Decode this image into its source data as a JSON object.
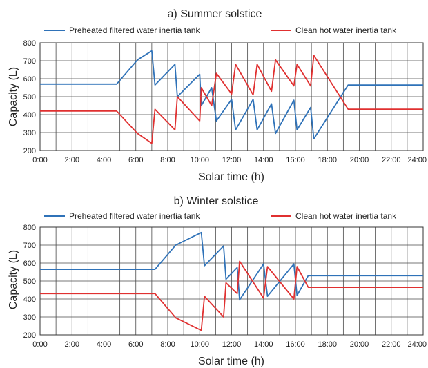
{
  "chart_data": [
    {
      "type": "line",
      "title": "a) Summer solstice",
      "xlabel": "Solar time (h)",
      "ylabel": "Capacity (L)",
      "xlim": [
        0,
        24
      ],
      "ylim": [
        200,
        800
      ],
      "x_ticks": [
        "0:00",
        "2:00",
        "4:00",
        "6:00",
        "8:00",
        "10:00",
        "12:00",
        "14:00",
        "16:00",
        "18:00",
        "20:00",
        "22:00",
        "24:00"
      ],
      "y_ticks": [
        "200",
        "300",
        "400",
        "500",
        "600",
        "700",
        "800"
      ],
      "grid": true,
      "legend": "top",
      "series": [
        {
          "name": "Preheated filtered water inertia tank",
          "color": "#2f72b8",
          "points": [
            [
              0,
              570
            ],
            [
              4.8,
              570
            ],
            [
              6.1,
              705
            ],
            [
              7,
              755
            ],
            [
              7.2,
              565
            ],
            [
              8.45,
              680
            ],
            [
              8.6,
              500
            ],
            [
              10,
              625
            ],
            [
              10.1,
              450
            ],
            [
              10.75,
              550
            ],
            [
              11.05,
              365
            ],
            [
              12,
              485
            ],
            [
              12.25,
              315
            ],
            [
              13.35,
              485
            ],
            [
              13.6,
              315
            ],
            [
              14.5,
              460
            ],
            [
              14.75,
              295
            ],
            [
              15.9,
              480
            ],
            [
              16.1,
              315
            ],
            [
              16.95,
              440
            ],
            [
              17.15,
              265
            ],
            [
              19.3,
              565
            ],
            [
              24,
              565
            ]
          ]
        },
        {
          "name": "Clean hot water inertia tank",
          "color": "#e03030",
          "points": [
            [
              0,
              420
            ],
            [
              4.8,
              420
            ],
            [
              6.1,
              295
            ],
            [
              7,
              240
            ],
            [
              7.2,
              430
            ],
            [
              8.45,
              315
            ],
            [
              8.6,
              500
            ],
            [
              10,
              365
            ],
            [
              10.1,
              550
            ],
            [
              10.75,
              450
            ],
            [
              11.05,
              630
            ],
            [
              12,
              515
            ],
            [
              12.25,
              680
            ],
            [
              13.35,
              510
            ],
            [
              13.6,
              680
            ],
            [
              14.5,
              530
            ],
            [
              14.75,
              705
            ],
            [
              15.9,
              560
            ],
            [
              16.1,
              680
            ],
            [
              16.95,
              560
            ],
            [
              17.15,
              730
            ],
            [
              19.3,
              430
            ],
            [
              24,
              430
            ]
          ]
        }
      ]
    },
    {
      "type": "line",
      "title": "b) Winter solstice",
      "xlabel": "Solar time (h)",
      "ylabel": "Capacity (L)",
      "xlim": [
        0,
        24
      ],
      "ylim": [
        200,
        800
      ],
      "x_ticks": [
        "0:00",
        "2:00",
        "4:00",
        "6:00",
        "8:00",
        "10:00",
        "12:00",
        "14:00",
        "16:00",
        "18:00",
        "20:00",
        "22:00",
        "24:00"
      ],
      "y_ticks": [
        "200",
        "300",
        "400",
        "500",
        "600",
        "700",
        "800"
      ],
      "grid": true,
      "legend": "top",
      "series": [
        {
          "name": "Preheated filtered water inertia tank",
          "color": "#2f72b8",
          "points": [
            [
              0,
              565
            ],
            [
              7.2,
              565
            ],
            [
              8.5,
              700
            ],
            [
              10.1,
              770
            ],
            [
              10.3,
              585
            ],
            [
              11.5,
              695
            ],
            [
              11.65,
              510
            ],
            [
              12.35,
              575
            ],
            [
              12.5,
              395
            ],
            [
              14,
              595
            ],
            [
              14.25,
              415
            ],
            [
              15.9,
              595
            ],
            [
              16.1,
              420
            ],
            [
              16.8,
              530
            ],
            [
              24,
              530
            ]
          ]
        },
        {
          "name": "Clean hot water inertia tank",
          "color": "#e03030",
          "points": [
            [
              0,
              430
            ],
            [
              7.2,
              430
            ],
            [
              8.5,
              295
            ],
            [
              10.1,
              225
            ],
            [
              10.3,
              415
            ],
            [
              11.5,
              300
            ],
            [
              11.65,
              490
            ],
            [
              12.35,
              430
            ],
            [
              12.5,
              610
            ],
            [
              14,
              405
            ],
            [
              14.25,
              580
            ],
            [
              15.9,
              400
            ],
            [
              16.1,
              580
            ],
            [
              16.8,
              465
            ],
            [
              24,
              465
            ]
          ]
        }
      ]
    }
  ]
}
